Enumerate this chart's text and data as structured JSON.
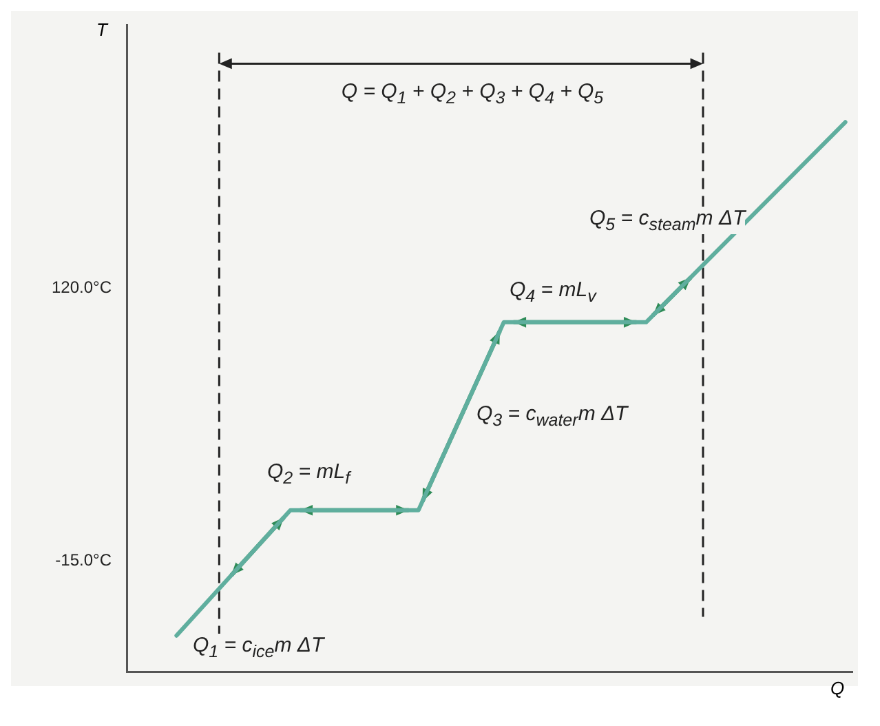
{
  "chart_data": {
    "type": "line",
    "xlabel": "Q",
    "ylabel": "T",
    "categories": [
      null,
      null,
      null,
      null,
      null,
      null,
      null,
      null,
      null,
      null,
      null,
      null,
      null,
      null,
      null,
      null,
      null,
      null,
      null,
      null,
      null,
      null,
      null,
      null,
      null,
      null,
      null,
      null,
      null,
      null,
      null,
      null,
      null,
      null,
      null,
      null,
      null,
      null,
      null,
      null,
      null,
      null,
      null,
      null,
      null,
      null,
      null,
      null,
      null,
      null,
      null
    ],
    "series": [
      {
        "color": "#5fae9e",
        "values": [
          null,
          null,
          null,
          -52,
          null,
          null,
          null,
          null,
          null,
          null,
          null,
          10,
          null,
          null,
          null,
          null,
          null,
          null,
          null,
          null,
          10,
          null,
          null,
          null,
          null,
          null,
          103,
          null,
          null,
          null,
          null,
          null,
          null,
          null,
          null,
          null,
          103,
          null,
          null,
          null,
          null,
          null,
          null,
          null,
          null,
          null,
          null,
          null,
          null,
          null,
          202
        ]
      }
    ],
    "ylim": [
      -70,
      250
    ],
    "yticks": [
      {
        "value": -15,
        "label": "-15.0°C"
      },
      {
        "value": 120,
        "label": "120.0°C"
      }
    ],
    "tick_labels": "y",
    "grid": false,
    "legend": false,
    "marker": "none",
    "line_style": "solid",
    "annotations": [
      "Q = Q$_{1}$ + Q$_{2}$ + Q$_{3}$ + Q$_{4}$ + Q$_{5}$",
      "Q$_{5}$ = c$_{steam}$m ΔT",
      "Q$_{4}$ = mL$_{v}$",
      "Q$_{3}$ = c$_{water}$m ΔT",
      "Q$_{2}$ = mL$_{f}$",
      "Q$_{1}$ = c$_{ice}$m ΔT"
    ]
  }
}
